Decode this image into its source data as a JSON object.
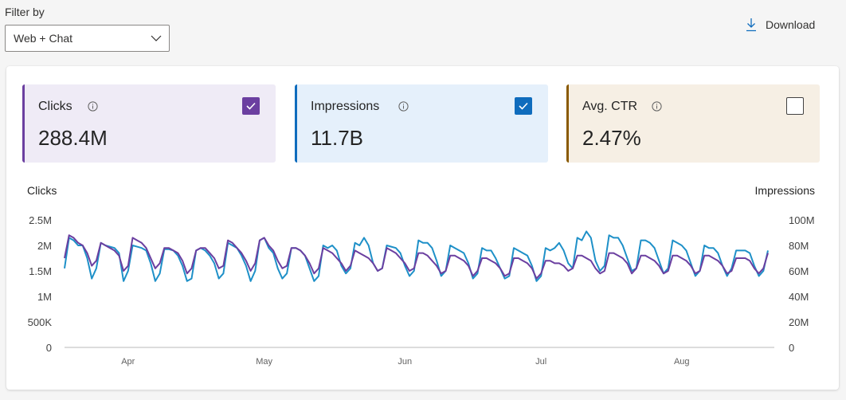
{
  "filter": {
    "label": "Filter by",
    "selected": "Web + Chat"
  },
  "toolbar": {
    "download_label": "Download"
  },
  "metrics": [
    {
      "title": "Clicks",
      "value": "288.4M",
      "checked": true,
      "color": "#6b3fa0",
      "bg": "#efebf6"
    },
    {
      "title": "Impressions",
      "value": "11.7B",
      "checked": true,
      "color": "#0f6cbd",
      "bg": "#e5f0fb"
    },
    {
      "title": "Avg. CTR",
      "value": "2.47%",
      "checked": false,
      "color": "#8a5a00",
      "bg": "#f6efe4"
    }
  ],
  "chart_data": {
    "type": "line",
    "left_axis_label": "Clicks",
    "right_axis_label": "Impressions",
    "left_ticks": [
      "0",
      "500K",
      "1M",
      "1.5M",
      "2M",
      "2.5M"
    ],
    "right_ticks": [
      "0",
      "20M",
      "40M",
      "60M",
      "80M",
      "100M"
    ],
    "ylim_left": [
      0,
      2500000
    ],
    "ylim_right": [
      0,
      100000000
    ],
    "month_labels": [
      "Apr",
      "May",
      "Jun",
      "Jul",
      "Aug"
    ],
    "month_label_day_index": [
      14,
      44,
      75,
      105,
      136
    ],
    "series": [
      {
        "name": "Clicks",
        "axis": "left",
        "color": "#6b3fa0",
        "values": [
          1750000,
          2200000,
          2150000,
          2050000,
          2000000,
          1850000,
          1600000,
          1700000,
          2050000,
          2000000,
          1950000,
          1900000,
          1800000,
          1500000,
          1600000,
          2150000,
          2100000,
          2050000,
          1950000,
          1750000,
          1550000,
          1650000,
          1950000,
          1950000,
          1900000,
          1850000,
          1700000,
          1450000,
          1550000,
          1900000,
          1950000,
          1950000,
          1850000,
          1750000,
          1550000,
          1600000,
          2100000,
          2050000,
          1950000,
          1850000,
          1700000,
          1500000,
          1650000,
          2100000,
          2150000,
          2000000,
          1900000,
          1700000,
          1550000,
          1600000,
          1950000,
          1950000,
          1900000,
          1800000,
          1650000,
          1450000,
          1550000,
          1950000,
          1900000,
          1850000,
          1750000,
          1650000,
          1500000,
          1600000,
          1900000,
          1850000,
          1800000,
          1750000,
          1650000,
          1500000,
          1550000,
          1950000,
          1900000,
          1850000,
          1750000,
          1650000,
          1500000,
          1550000,
          1850000,
          1850000,
          1800000,
          1700000,
          1600000,
          1450000,
          1500000,
          1800000,
          1800000,
          1750000,
          1700000,
          1600000,
          1400000,
          1500000,
          1750000,
          1750000,
          1700000,
          1650000,
          1550000,
          1400000,
          1450000,
          1750000,
          1750000,
          1700000,
          1650000,
          1550000,
          1350000,
          1450000,
          1700000,
          1700000,
          1650000,
          1650000,
          1600000,
          1500000,
          1550000,
          1800000,
          1800000,
          1750000,
          1700000,
          1550000,
          1450000,
          1500000,
          1850000,
          1850000,
          1800000,
          1750000,
          1650000,
          1450000,
          1550000,
          1800000,
          1800000,
          1750000,
          1700000,
          1600000,
          1450000,
          1500000,
          1800000,
          1800000,
          1750000,
          1700000,
          1600000,
          1450000,
          1500000,
          1800000,
          1800000,
          1750000,
          1700000,
          1600000,
          1450000,
          1500000,
          1750000,
          1750000,
          1750000,
          1700000,
          1550000,
          1450000,
          1550000,
          1850000
        ]
      },
      {
        "name": "Impressions",
        "axis": "right",
        "color": "#1e90c8",
        "values": [
          62000000,
          86000000,
          84000000,
          80000000,
          80000000,
          70000000,
          54000000,
          62000000,
          82000000,
          80000000,
          79000000,
          78000000,
          74000000,
          52000000,
          60000000,
          80000000,
          79000000,
          78000000,
          76000000,
          66000000,
          52000000,
          58000000,
          77000000,
          77000000,
          76000000,
          72000000,
          64000000,
          52000000,
          54000000,
          76000000,
          78000000,
          76000000,
          72000000,
          66000000,
          54000000,
          58000000,
          82000000,
          80000000,
          78000000,
          72000000,
          64000000,
          52000000,
          60000000,
          84000000,
          86000000,
          78000000,
          74000000,
          62000000,
          54000000,
          58000000,
          78000000,
          78000000,
          76000000,
          72000000,
          62000000,
          52000000,
          56000000,
          80000000,
          78000000,
          80000000,
          76000000,
          64000000,
          58000000,
          62000000,
          82000000,
          80000000,
          86000000,
          80000000,
          66000000,
          60000000,
          62000000,
          80000000,
          79000000,
          78000000,
          74000000,
          64000000,
          56000000,
          60000000,
          84000000,
          82000000,
          82000000,
          78000000,
          68000000,
          56000000,
          60000000,
          80000000,
          78000000,
          76000000,
          74000000,
          66000000,
          54000000,
          58000000,
          78000000,
          76000000,
          76000000,
          70000000,
          62000000,
          54000000,
          56000000,
          78000000,
          76000000,
          74000000,
          72000000,
          64000000,
          52000000,
          56000000,
          78000000,
          76000000,
          78000000,
          82000000,
          76000000,
          66000000,
          62000000,
          86000000,
          84000000,
          91000000,
          86000000,
          68000000,
          60000000,
          64000000,
          88000000,
          86000000,
          86000000,
          80000000,
          70000000,
          60000000,
          62000000,
          84000000,
          84000000,
          82000000,
          78000000,
          68000000,
          58000000,
          62000000,
          84000000,
          82000000,
          80000000,
          76000000,
          66000000,
          56000000,
          60000000,
          80000000,
          78000000,
          78000000,
          74000000,
          64000000,
          56000000,
          62000000,
          76000000,
          76000000,
          76000000,
          74000000,
          64000000,
          56000000,
          60000000,
          76000000
        ]
      }
    ]
  }
}
